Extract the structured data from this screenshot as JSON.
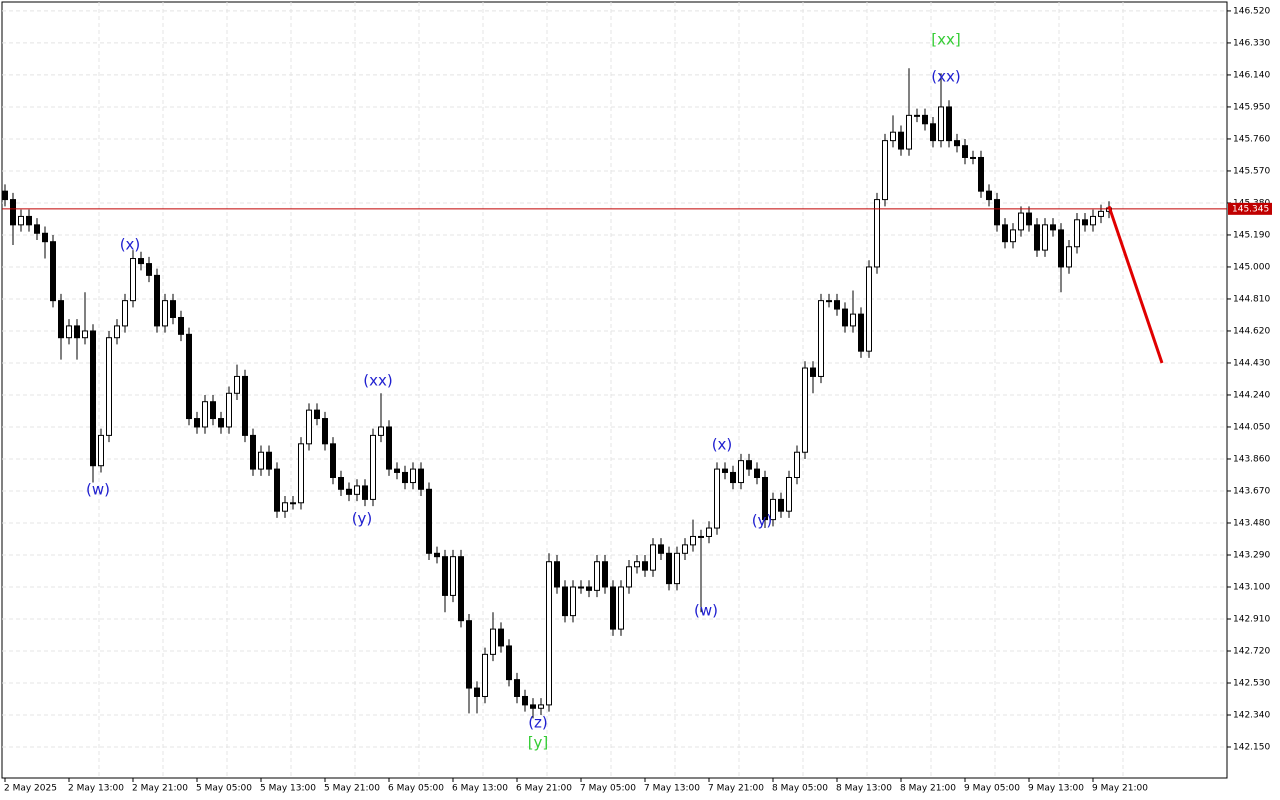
{
  "chart_data": {
    "type": "candlestick",
    "up_color": "#ffffff",
    "down_color": "#000000",
    "grid": true,
    "categories": [
      "2 May 2025",
      null,
      null,
      null,
      null,
      null,
      null,
      null,
      "2 May 13:00",
      null,
      null,
      null,
      null,
      null,
      null,
      null,
      "2 May 21:00",
      null,
      null,
      null,
      null,
      null,
      null,
      null,
      "5 May 05:00",
      null,
      null,
      null,
      null,
      null,
      null,
      null,
      "5 May 13:00",
      null,
      null,
      null,
      null,
      null,
      null,
      null,
      "5 May 21:00",
      null,
      null,
      null,
      null,
      null,
      null,
      null,
      "6 May 05:00",
      null,
      null,
      null,
      null,
      null,
      null,
      null,
      "6 May 13:00",
      null,
      null,
      null,
      null,
      null,
      null,
      null,
      "6 May 21:00",
      null,
      null,
      null,
      null,
      null,
      null,
      null,
      "7 May 05:00",
      null,
      null,
      null,
      null,
      null,
      null,
      null,
      "7 May 13:00",
      null,
      null,
      null,
      null,
      null,
      null,
      null,
      "7 May 21:00",
      null,
      null,
      null,
      null,
      null,
      null,
      null,
      "8 May 05:00",
      null,
      null,
      null,
      null,
      null,
      null,
      null,
      "8 May 13:00",
      null,
      null,
      null,
      null,
      null,
      null,
      null,
      "8 May 21:00",
      null,
      null,
      null,
      null,
      null,
      null,
      null,
      "9 May 05:00",
      null,
      null,
      null,
      null,
      null,
      null,
      null,
      "9 May 13:00",
      null,
      null,
      null,
      null,
      null,
      null,
      null,
      "9 May 21:00",
      null,
      null
    ],
    "open": [
      145.45,
      145.4,
      145.25,
      145.3,
      145.25,
      145.2,
      145.15,
      144.8,
      144.58,
      144.65,
      144.58,
      144.62,
      143.82,
      144.0,
      144.58,
      144.65,
      144.8,
      145.05,
      145.02,
      144.95,
      144.65,
      144.8,
      144.7,
      144.6,
      144.1,
      144.05,
      144.2,
      144.1,
      144.05,
      144.25,
      144.35,
      144.0,
      143.8,
      143.9,
      143.8,
      143.55,
      143.6,
      143.6,
      143.95,
      144.15,
      144.1,
      143.95,
      143.75,
      143.68,
      143.65,
      143.7,
      143.62,
      144.0,
      144.05,
      143.8,
      143.78,
      143.72,
      143.8,
      143.68,
      143.3,
      143.28,
      143.05,
      143.28,
      142.9,
      142.5,
      142.45,
      142.7,
      142.85,
      142.75,
      142.55,
      142.45,
      142.4,
      142.38,
      142.4,
      143.25,
      143.1,
      142.93,
      143.1,
      143.1,
      143.08,
      143.25,
      143.1,
      142.85,
      143.1,
      143.22,
      143.25,
      143.2,
      143.35,
      143.3,
      143.12,
      143.3,
      143.35,
      143.4,
      143.4,
      143.45,
      143.8,
      143.78,
      143.72,
      143.85,
      143.8,
      143.75,
      143.5,
      143.62,
      143.55,
      143.75,
      143.9,
      144.4,
      144.35,
      144.8,
      144.8,
      144.75,
      144.65,
      144.72,
      144.5,
      145.0,
      145.4,
      145.75,
      145.8,
      145.7,
      145.9,
      145.9,
      145.85,
      145.75,
      145.95,
      145.75,
      145.72,
      145.65,
      145.65,
      145.45,
      145.4,
      145.25,
      145.15,
      145.22,
      145.32,
      145.25,
      145.1,
      145.25,
      145.22,
      145.0,
      145.12,
      145.28,
      145.25,
      145.3,
      145.33
    ],
    "high": [
      145.49,
      145.44,
      145.34,
      145.34,
      145.29,
      145.24,
      145.19,
      144.84,
      144.69,
      144.69,
      144.85,
      144.66,
      144.04,
      144.62,
      144.69,
      144.84,
      145.1,
      145.09,
      145.06,
      144.99,
      144.84,
      144.84,
      144.74,
      144.64,
      144.14,
      144.24,
      144.24,
      144.14,
      144.29,
      144.42,
      144.39,
      144.04,
      143.94,
      143.94,
      143.84,
      143.64,
      143.64,
      143.99,
      144.19,
      144.19,
      144.14,
      143.99,
      143.79,
      143.72,
      143.74,
      143.74,
      144.04,
      144.25,
      144.09,
      143.84,
      143.82,
      143.84,
      143.84,
      143.72,
      143.34,
      143.32,
      143.32,
      143.32,
      142.94,
      142.54,
      142.74,
      142.95,
      142.89,
      142.79,
      142.59,
      142.49,
      142.44,
      142.44,
      143.3,
      143.29,
      143.14,
      143.14,
      143.14,
      143.14,
      143.29,
      143.29,
      143.14,
      143.14,
      143.26,
      143.29,
      143.29,
      143.39,
      143.39,
      143.34,
      143.34,
      143.39,
      143.5,
      143.44,
      143.49,
      143.84,
      143.84,
      143.82,
      143.89,
      143.89,
      143.84,
      143.79,
      143.66,
      143.66,
      143.79,
      143.94,
      144.44,
      144.44,
      144.84,
      144.84,
      144.84,
      144.79,
      144.86,
      144.76,
      145.04,
      145.44,
      145.79,
      145.9,
      145.84,
      146.18,
      145.94,
      145.94,
      145.89,
      146.15,
      145.99,
      145.79,
      145.76,
      145.69,
      145.69,
      145.49,
      145.44,
      145.29,
      145.26,
      145.36,
      145.36,
      145.29,
      145.29,
      145.29,
      145.26,
      145.16,
      145.32,
      145.32,
      145.34,
      145.37,
      145.39
    ],
    "low": [
      145.36,
      145.13,
      145.21,
      145.21,
      145.16,
      145.05,
      144.76,
      144.45,
      144.54,
      144.45,
      144.54,
      143.72,
      143.78,
      143.96,
      144.54,
      144.61,
      144.76,
      144.98,
      144.91,
      144.61,
      144.61,
      144.66,
      144.56,
      144.06,
      144.01,
      144.01,
      144.06,
      144.01,
      144.01,
      144.21,
      143.96,
      143.76,
      143.76,
      143.76,
      143.51,
      143.51,
      143.56,
      143.56,
      143.91,
      144.06,
      143.91,
      143.71,
      143.64,
      143.61,
      143.61,
      143.58,
      143.58,
      143.96,
      143.76,
      143.74,
      143.68,
      143.68,
      143.64,
      143.26,
      143.24,
      142.95,
      143.01,
      142.86,
      142.35,
      142.35,
      142.41,
      142.66,
      142.71,
      142.51,
      142.41,
      142.36,
      142.32,
      142.34,
      142.36,
      143.06,
      142.89,
      142.89,
      143.06,
      143.04,
      143.04,
      143.06,
      142.81,
      142.81,
      143.06,
      143.18,
      143.16,
      143.16,
      143.26,
      143.08,
      143.08,
      143.26,
      143.31,
      142.95,
      143.36,
      143.41,
      143.74,
      143.68,
      143.68,
      143.76,
      143.71,
      143.45,
      143.46,
      143.51,
      143.51,
      143.71,
      143.86,
      144.25,
      144.31,
      144.76,
      144.71,
      144.61,
      144.61,
      144.46,
      144.46,
      144.96,
      145.36,
      145.71,
      145.66,
      145.66,
      145.86,
      145.81,
      145.71,
      145.71,
      145.71,
      145.68,
      145.61,
      145.61,
      145.41,
      145.36,
      145.21,
      145.11,
      145.11,
      145.18,
      145.21,
      145.06,
      145.06,
      145.18,
      144.85,
      144.96,
      145.08,
      145.21,
      145.21,
      145.26,
      145.29
    ],
    "close": [
      145.4,
      145.25,
      145.3,
      145.25,
      145.2,
      145.15,
      144.8,
      144.58,
      144.65,
      144.58,
      144.62,
      143.82,
      144.0,
      144.58,
      144.65,
      144.8,
      145.05,
      145.02,
      144.95,
      144.65,
      144.8,
      144.7,
      144.6,
      144.1,
      144.05,
      144.2,
      144.1,
      144.05,
      144.25,
      144.35,
      144.0,
      143.8,
      143.9,
      143.8,
      143.55,
      143.6,
      143.6,
      143.95,
      144.15,
      144.1,
      143.95,
      143.75,
      143.68,
      143.65,
      143.7,
      143.62,
      144.0,
      144.05,
      143.8,
      143.78,
      143.72,
      143.8,
      143.68,
      143.3,
      143.28,
      143.05,
      143.28,
      142.9,
      142.5,
      142.45,
      142.7,
      142.85,
      142.75,
      142.55,
      142.45,
      142.4,
      142.38,
      142.4,
      143.25,
      143.1,
      142.93,
      143.1,
      143.1,
      143.08,
      143.25,
      143.1,
      142.85,
      143.1,
      143.22,
      143.25,
      143.2,
      143.35,
      143.3,
      143.12,
      143.3,
      143.35,
      143.4,
      143.4,
      143.45,
      143.8,
      143.78,
      143.72,
      143.85,
      143.8,
      143.75,
      143.5,
      143.62,
      143.55,
      143.75,
      143.9,
      144.4,
      144.35,
      144.8,
      144.8,
      144.75,
      144.65,
      144.72,
      144.5,
      145.0,
      145.4,
      145.75,
      145.8,
      145.7,
      145.9,
      145.9,
      145.85,
      145.75,
      145.95,
      145.75,
      145.72,
      145.65,
      145.65,
      145.45,
      145.4,
      145.25,
      145.15,
      145.22,
      145.32,
      145.25,
      145.1,
      145.25,
      145.22,
      145.0,
      145.12,
      145.28,
      145.25,
      145.3,
      145.33,
      145.35
    ],
    "ylim": [
      141.966,
      146.573
    ],
    "yticks": [
      {
        "value": 146.52,
        "label": "146.520"
      },
      {
        "value": 146.33,
        "label": "146.330"
      },
      {
        "value": 146.14,
        "label": "146.140"
      },
      {
        "value": 145.95,
        "label": "145.950"
      },
      {
        "value": 145.76,
        "label": "145.760"
      },
      {
        "value": 145.57,
        "label": "145.570"
      },
      {
        "value": 145.38,
        "label": "145.380"
      },
      {
        "value": 145.19,
        "label": "145.190"
      },
      {
        "value": 145.0,
        "label": "145.000"
      },
      {
        "value": 144.81,
        "label": "144.810"
      },
      {
        "value": 144.62,
        "label": "144.620"
      },
      {
        "value": 144.43,
        "label": "144.430"
      },
      {
        "value": 144.24,
        "label": "144.240"
      },
      {
        "value": 144.05,
        "label": "144.050"
      },
      {
        "value": 143.86,
        "label": "143.860"
      },
      {
        "value": 143.67,
        "label": "143.670"
      },
      {
        "value": 143.48,
        "label": "143.480"
      },
      {
        "value": 143.29,
        "label": "143.290"
      },
      {
        "value": 143.1,
        "label": "143.100"
      },
      {
        "value": 142.91,
        "label": "142.910"
      },
      {
        "value": 142.72,
        "label": "142.720"
      },
      {
        "value": 142.53,
        "label": "142.530"
      },
      {
        "value": 142.34,
        "label": "142.340"
      },
      {
        "value": 142.15,
        "label": "142.150"
      }
    ],
    "price_line": {
      "value": 145.345,
      "color": "#c00000"
    },
    "forecast": {
      "color": "#e00000",
      "values": [
        145.36,
        144.43
      ]
    },
    "annotations": [
      {
        "text": "(x)",
        "color": "#2020d0"
      },
      {
        "text": "(w)",
        "color": "#2020d0"
      },
      {
        "text": "(xx)",
        "color": "#2020d0"
      },
      {
        "text": "(y)",
        "color": "#2020d0"
      },
      {
        "text": "(z)",
        "color": "#2020d0"
      },
      {
        "text": "[y]",
        "color": "#33cc33"
      },
      {
        "text": "(w)",
        "color": "#2020d0"
      },
      {
        "text": "(x)",
        "color": "#2020d0"
      },
      {
        "text": "(y)",
        "color": "#2020d0"
      },
      {
        "text": "[xx]",
        "color": "#33cc33"
      },
      {
        "text": "(xx)",
        "color": "#2020d0"
      }
    ]
  }
}
